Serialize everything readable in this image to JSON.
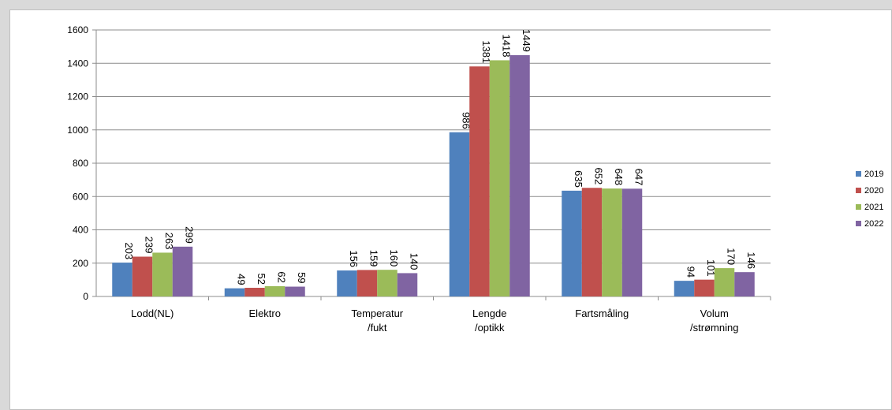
{
  "chart_data": {
    "type": "bar",
    "categories": [
      [
        "Lodd(NL)"
      ],
      [
        "Elektro"
      ],
      [
        "Temperatur",
        "/fukt"
      ],
      [
        "Lengde",
        "/optikk"
      ],
      [
        "Fartsmåling"
      ],
      [
        "Volum",
        "/strømning"
      ]
    ],
    "series": [
      {
        "name": "2019",
        "color": "#4f81bd",
        "values": [
          203,
          49,
          156,
          986,
          635,
          94
        ]
      },
      {
        "name": "2020",
        "color": "#c0504d",
        "values": [
          239,
          52,
          159,
          1381,
          652,
          101
        ]
      },
      {
        "name": "2021",
        "color": "#9bbb59",
        "values": [
          263,
          62,
          160,
          1418,
          648,
          170
        ]
      },
      {
        "name": "2022",
        "color": "#8064a2",
        "values": [
          299,
          59,
          140,
          1449,
          647,
          146
        ]
      }
    ],
    "ylim": [
      0,
      1600
    ],
    "yticks": [
      0,
      200,
      400,
      600,
      800,
      1000,
      1200,
      1400,
      1600
    ],
    "grid": true,
    "legend_position": "right",
    "data_labels": "rotated"
  }
}
